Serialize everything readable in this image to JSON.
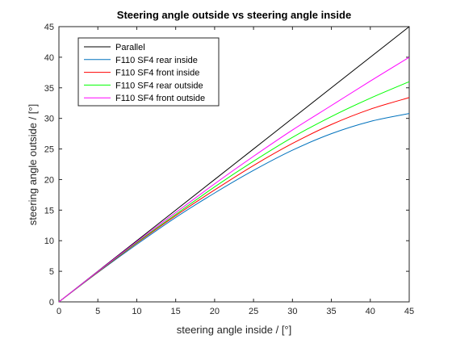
{
  "chart_data": {
    "type": "line",
    "title": "Steering angle outside vs steering angle inside",
    "xlabel": "steering angle inside / [°]",
    "ylabel": "steering angle outside / [°]",
    "xlim": [
      0,
      45
    ],
    "ylim": [
      0,
      45
    ],
    "xticks": [
      0,
      5,
      10,
      15,
      20,
      25,
      30,
      35,
      40,
      45
    ],
    "yticks": [
      0,
      5,
      10,
      15,
      20,
      25,
      30,
      35,
      40,
      45
    ],
    "grid": false,
    "legend_position": "top-left",
    "x": [
      0,
      5,
      10,
      15,
      20,
      25,
      30,
      35,
      40,
      45
    ],
    "series": [
      {
        "name": "Parallel",
        "color": "#000000",
        "values": [
          0,
          5,
          10,
          15,
          20,
          25,
          30,
          35,
          40,
          45
        ]
      },
      {
        "name": "F110 SF4 rear inside",
        "color": "#0072BD",
        "values": [
          0,
          4.8,
          9.4,
          13.8,
          17.8,
          21.5,
          24.8,
          27.5,
          29.5,
          30.8
        ]
      },
      {
        "name": "F110 SF4 front inside",
        "color": "#FF0000",
        "values": [
          0,
          4.85,
          9.6,
          14.1,
          18.3,
          22.3,
          25.9,
          29.0,
          31.5,
          33.4
        ]
      },
      {
        "name": "F110 SF4 rear outside",
        "color": "#00FF00",
        "values": [
          0,
          4.9,
          9.7,
          14.3,
          18.8,
          23.0,
          26.9,
          30.3,
          33.3,
          36.0
        ]
      },
      {
        "name": "F110 SF4 front outside",
        "color": "#FF00FF",
        "values": [
          0,
          4.95,
          9.85,
          14.6,
          19.3,
          23.8,
          28.1,
          32.1,
          36.1,
          40.0
        ]
      }
    ]
  }
}
